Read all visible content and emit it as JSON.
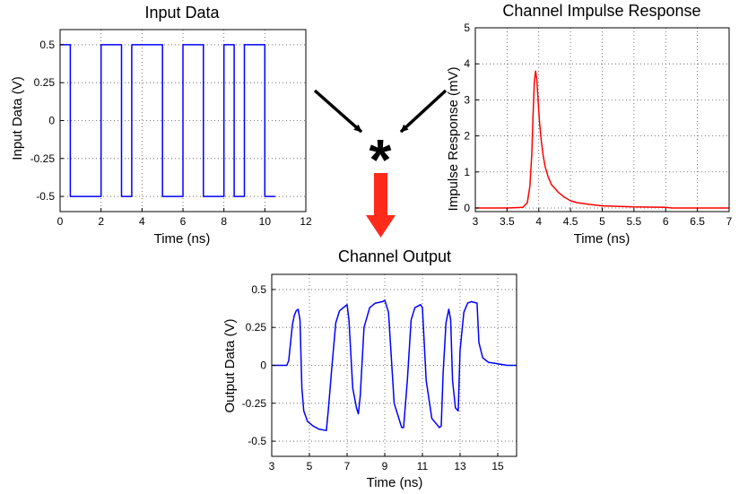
{
  "chart_data": [
    {
      "type": "line",
      "title": "Input Data",
      "xlabel": "Time (ns)",
      "ylabel": "Input Data (V)",
      "xlim": [
        0,
        12
      ],
      "ylim": [
        -0.6,
        0.6
      ],
      "x_ticks": [
        0,
        2,
        4,
        6,
        8,
        10,
        12
      ],
      "x_tick_labels": [
        "0",
        "2",
        "4",
        "6",
        "8",
        "10",
        "12"
      ],
      "y_ticks": [
        0.5,
        0.25,
        0,
        -0.25,
        -0.5
      ],
      "y_tick_labels": [
        "0.5",
        "0.25",
        "0",
        "-0.25",
        "-0.5"
      ],
      "grid": true,
      "series": [
        {
          "color": "#0000ff",
          "x": [
            0,
            0.5,
            0.5,
            2.0,
            2.0,
            3.0,
            3.0,
            3.5,
            3.5,
            5.0,
            5.0,
            6.0,
            6.0,
            7.0,
            7.0,
            8.0,
            8.0,
            8.5,
            8.5,
            9.0,
            9.0,
            10.0,
            10.0,
            10.5
          ],
          "y": [
            0.5,
            0.5,
            -0.5,
            -0.5,
            0.5,
            0.5,
            -0.5,
            -0.5,
            0.5,
            0.5,
            -0.5,
            -0.5,
            0.5,
            0.5,
            -0.5,
            -0.5,
            0.5,
            0.5,
            -0.5,
            -0.5,
            0.5,
            0.5,
            -0.5,
            -0.5
          ]
        }
      ]
    },
    {
      "type": "line",
      "title": "Channel Impulse Response",
      "xlabel": "Time (ns)",
      "ylabel": "Impulse Response (mV)",
      "xlim": [
        3,
        7
      ],
      "ylim": [
        -0.1,
        5
      ],
      "x_ticks": [
        3,
        3.5,
        4,
        4.5,
        5,
        5.5,
        6,
        6.5,
        7
      ],
      "x_tick_labels": [
        "3",
        "3.5",
        "4",
        "4.5",
        "5",
        "5.5",
        "6",
        "6.5",
        "7"
      ],
      "y_ticks": [
        0,
        1,
        2,
        3,
        4,
        5
      ],
      "y_tick_labels": [
        "0",
        "1",
        "2",
        "3",
        "4",
        "5"
      ],
      "grid": true,
      "series": [
        {
          "color": "#ff0000",
          "x": [
            3.0,
            3.5,
            3.75,
            3.82,
            3.86,
            3.89,
            3.91,
            3.93,
            3.95,
            3.97,
            3.99,
            4.01,
            4.04,
            4.07,
            4.1,
            4.15,
            4.2,
            4.3,
            4.4,
            4.5,
            4.6,
            4.8,
            5.0,
            5.5,
            6.0,
            6.1,
            6.5,
            7.0
          ],
          "y": [
            0.0,
            0.0,
            0.02,
            0.15,
            0.6,
            1.5,
            2.6,
            3.5,
            3.8,
            3.55,
            3.0,
            2.4,
            1.85,
            1.45,
            1.15,
            0.85,
            0.65,
            0.45,
            0.3,
            0.2,
            0.15,
            0.1,
            0.06,
            0.03,
            0.02,
            0.0,
            0.0,
            0.0
          ]
        }
      ]
    },
    {
      "type": "line",
      "title": "Channel Output",
      "xlabel": "Time (ns)",
      "ylabel": "Output Data (V)",
      "xlim": [
        3,
        16
      ],
      "ylim": [
        -0.6,
        0.6
      ],
      "x_ticks": [
        3,
        5,
        7,
        9,
        11,
        13,
        15
      ],
      "x_tick_labels": [
        "3",
        "5",
        "7",
        "9",
        "11",
        "13",
        "15"
      ],
      "y_ticks": [
        0.5,
        0.25,
        0,
        -0.25,
        -0.5
      ],
      "y_tick_labels": [
        "0.5",
        "0.25",
        "0",
        "-0.25",
        "-0.5"
      ],
      "grid": true,
      "series": [
        {
          "color": "#0000ff",
          "x": [
            3.0,
            3.8,
            3.9,
            4.0,
            4.1,
            4.2,
            4.3,
            4.4,
            4.5,
            4.6,
            4.7,
            4.9,
            5.2,
            5.5,
            5.9,
            6.0,
            6.2,
            6.4,
            6.6,
            6.9,
            7.0,
            7.1,
            7.3,
            7.5,
            7.6,
            7.7,
            7.9,
            8.2,
            8.5,
            8.9,
            9.0,
            9.2,
            9.5,
            9.9,
            10.0,
            10.2,
            10.4,
            10.6,
            10.9,
            11.0,
            11.2,
            11.5,
            11.9,
            12.0,
            12.1,
            12.25,
            12.4,
            12.5,
            12.6,
            12.75,
            12.9,
            13.0,
            13.2,
            13.4,
            13.6,
            13.9,
            14.0,
            14.2,
            14.5,
            15.0,
            15.5,
            16.0
          ],
          "y": [
            0.0,
            0.0,
            0.03,
            0.15,
            0.27,
            0.33,
            0.36,
            0.37,
            0.3,
            -0.15,
            -0.3,
            -0.37,
            -0.4,
            -0.42,
            -0.43,
            -0.3,
            0.0,
            0.28,
            0.36,
            0.39,
            0.4,
            0.3,
            -0.15,
            -0.28,
            -0.32,
            -0.2,
            0.25,
            0.38,
            0.41,
            0.42,
            0.43,
            0.35,
            -0.25,
            -0.41,
            -0.41,
            -0.1,
            0.3,
            0.38,
            0.4,
            0.38,
            -0.1,
            -0.35,
            -0.41,
            -0.4,
            -0.05,
            0.28,
            0.37,
            0.3,
            -0.1,
            -0.28,
            -0.3,
            0.1,
            0.35,
            0.41,
            0.42,
            0.41,
            0.15,
            0.05,
            0.02,
            0.01,
            0.0,
            0.0
          ]
        }
      ]
    }
  ],
  "diagram": {
    "convolution_symbol": "*"
  }
}
